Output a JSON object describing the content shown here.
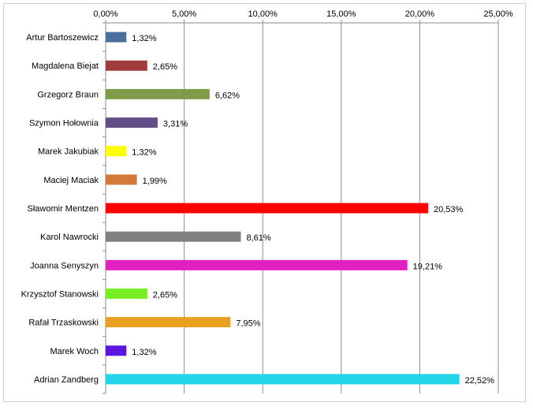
{
  "chart_data": {
    "type": "bar",
    "orientation": "horizontal",
    "x_axis_position": "top",
    "grid": true,
    "legend": "none",
    "xlim": [
      0,
      25
    ],
    "ticks": [
      0,
      5,
      10,
      15,
      20,
      25
    ],
    "tick_labels": [
      "0,00%",
      "5,00%",
      "10,00%",
      "15,00%",
      "20,00%",
      "25,00%"
    ],
    "categories": [
      "Artur Bartoszewicz",
      "Magdalena Biejat",
      "Grzegorz Braun",
      "Szymon Hołownia",
      "Marek Jakubiak",
      "Maciej Maciak",
      "Sławomir Mentzen",
      "Karol Nawrocki",
      "Joanna Senyszyn",
      "Krzysztof Stanowski",
      "Rafał Trzaskowski",
      "Marek Woch",
      "Adrian Zandberg"
    ],
    "values": [
      1.32,
      2.65,
      6.62,
      3.31,
      1.32,
      1.99,
      20.53,
      8.61,
      19.21,
      2.65,
      7.95,
      1.32,
      22.52
    ],
    "data_labels": [
      "1,32%",
      "2,65%",
      "6,62%",
      "3,31%",
      "1,32%",
      "1,99%",
      "20,53%",
      "8,61%",
      "19,21%",
      "2,65%",
      "7,95%",
      "1,32%",
      "22,52%"
    ],
    "colors": [
      "#4a6f9c",
      "#a03c3c",
      "#7f9d49",
      "#634f87",
      "#ffff00",
      "#d17a3c",
      "#ff0000",
      "#808080",
      "#e020c0",
      "#77ee22",
      "#e8a020",
      "#5a16e0",
      "#22d4e8"
    ]
  }
}
